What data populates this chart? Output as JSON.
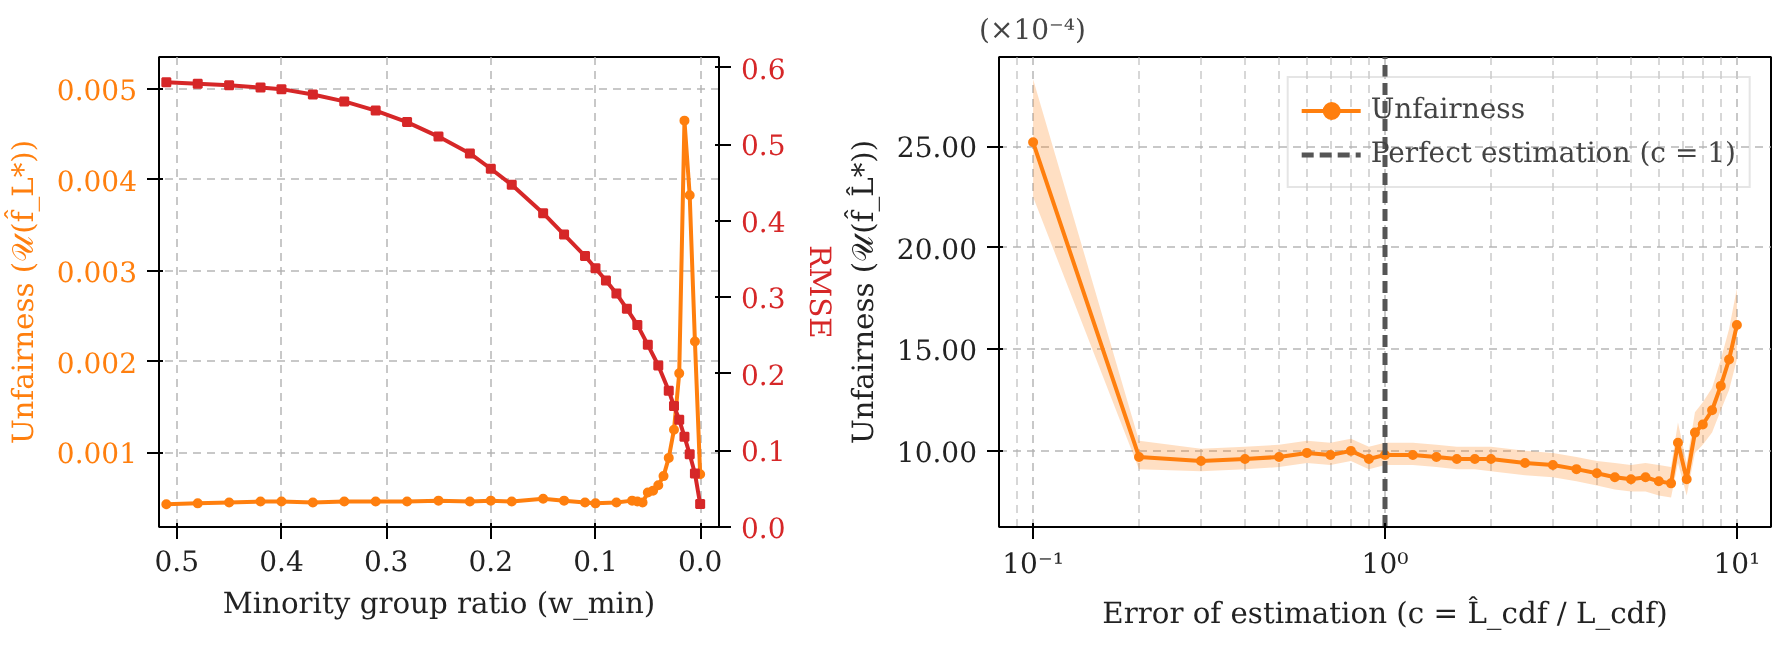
{
  "chart_data": [
    {
      "type": "line",
      "xlabel": "Minority group ratio (w_min)",
      "ylabel": "Unfairness (𝒰(f̂_L*))",
      "y2label": "RMSE",
      "xlim": [
        0.517,
        -0.018
      ],
      "xticks": [
        0.5,
        0.4,
        0.3,
        0.2,
        0.1,
        {
          "value": 0,
          "label": "0.0"
        }
      ],
      "ylim": [
        0.00018,
        0.00535
      ],
      "yticks": [
        0.001,
        0.002,
        0.003,
        0.004,
        0.005
      ],
      "y2lim": [
        0,
        0.614
      ],
      "y2ticks": [
        {
          "value": 0,
          "label": "0.0"
        },
        0.1,
        0.2,
        0.3,
        0.4,
        0.5,
        0.6
      ],
      "grid": true,
      "legend": false,
      "series": [
        {
          "color": "#ff7f0e",
          "marker": "circle",
          "x": [
            0.51,
            0.48,
            0.45,
            0.42,
            0.4,
            0.37,
            0.34,
            0.31,
            0.28,
            0.25,
            0.22,
            0.2,
            0.18,
            0.15,
            0.13,
            0.11,
            0.1,
            0.08,
            0.065,
            0.06,
            0.055,
            0.05,
            0.045,
            0.04,
            0.035,
            0.03,
            0.025,
            0.02,
            0.015,
            0.01,
            0.005,
            0.0
          ],
          "values": [
            0.00043,
            0.00044,
            0.00045,
            0.00046,
            0.00046,
            0.00045,
            0.00046,
            0.00046,
            0.00046,
            0.00047,
            0.00046,
            0.00047,
            0.00046,
            0.00049,
            0.00047,
            0.00045,
            0.00044,
            0.00045,
            0.00047,
            0.00046,
            0.00045,
            0.00056,
            0.00058,
            0.00064,
            0.00074,
            0.00094,
            0.00125,
            0.00187,
            0.00465,
            0.00383,
            0.00222,
            0.00076
          ]
        },
        {
          "color": "#d62728",
          "marker": "square",
          "axis": "y2",
          "x": [
            0.51,
            0.48,
            0.45,
            0.42,
            0.4,
            0.37,
            0.34,
            0.31,
            0.28,
            0.25,
            0.22,
            0.2,
            0.18,
            0.15,
            0.13,
            0.11,
            0.1,
            0.09,
            0.08,
            0.07,
            0.06,
            0.05,
            0.04,
            0.03,
            0.025,
            0.02,
            0.015,
            0.01,
            0.005,
            0.0
          ],
          "values": [
            0.581,
            0.579,
            0.577,
            0.574,
            0.572,
            0.565,
            0.556,
            0.544,
            0.529,
            0.51,
            0.488,
            0.468,
            0.447,
            0.41,
            0.382,
            0.354,
            0.338,
            0.322,
            0.305,
            0.285,
            0.264,
            0.238,
            0.211,
            0.178,
            0.158,
            0.14,
            0.118,
            0.095,
            0.07,
            0.03
          ]
        }
      ]
    },
    {
      "type": "line",
      "xlabel": "Error of estimation (c = L̂_cdf / L_cdf)",
      "ylabel": "Unfairness (𝒰(f̂_L̂*))",
      "annotations": [
        "(×10⁻⁴)"
      ],
      "log": "x",
      "xlim": [
        0.08,
        12.5
      ],
      "xticks": [
        {
          "value": 0.1,
          "label": "10⁻¹"
        },
        {
          "value": 1,
          "label": "10⁰"
        },
        {
          "value": 10,
          "label": "10¹"
        }
      ],
      "ylim": [
        6.25,
        29.4
      ],
      "yticks": [
        {
          "value": 10,
          "label": "10.00"
        },
        {
          "value": 15,
          "label": "15.00"
        },
        {
          "value": 20,
          "label": "20.00"
        },
        {
          "value": 25,
          "label": "25.00"
        }
      ],
      "grid": true,
      "legend": "top right",
      "ref_lines": [
        {
          "axis": "x",
          "value": 1,
          "label": "Perfect estimation (c = 1)",
          "color": "#555555",
          "line_style": "dashed"
        }
      ],
      "series": [
        {
          "name": "Unfairness",
          "color": "#ff7f0e",
          "marker": "circle",
          "x": [
            0.1,
            0.2,
            0.3,
            0.4,
            0.5,
            0.6,
            0.7,
            0.8,
            0.9,
            1.0,
            1.2,
            1.4,
            1.6,
            1.8,
            2.0,
            2.5,
            3.0,
            3.5,
            4.0,
            4.5,
            5.0,
            5.5,
            6.0,
            6.5,
            6.8,
            7.2,
            7.6,
            8.0,
            8.5,
            9.0,
            9.5,
            10.0
          ],
          "values": [
            25.2,
            9.7,
            9.5,
            9.6,
            9.7,
            9.9,
            9.8,
            10.0,
            9.6,
            9.8,
            9.8,
            9.7,
            9.6,
            9.6,
            9.6,
            9.4,
            9.3,
            9.1,
            8.9,
            8.7,
            8.6,
            8.7,
            8.5,
            8.4,
            10.4,
            8.6,
            10.9,
            11.3,
            12.0,
            13.2,
            14.5,
            16.2
          ],
          "lower": [
            22.5,
            9.1,
            9.0,
            9.1,
            9.2,
            9.4,
            9.3,
            9.5,
            9.1,
            9.3,
            9.3,
            9.2,
            9.1,
            9.1,
            9.0,
            8.8,
            8.7,
            8.5,
            8.3,
            8.1,
            8.0,
            8.0,
            7.8,
            7.7,
            9.4,
            7.8,
            9.9,
            10.3,
            10.9,
            12.0,
            13.0,
            14.5
          ],
          "upper": [
            28.3,
            10.5,
            10.1,
            10.2,
            10.3,
            10.5,
            10.4,
            10.6,
            10.2,
            10.4,
            10.4,
            10.3,
            10.2,
            10.2,
            10.2,
            10.0,
            9.9,
            9.7,
            9.5,
            9.4,
            9.3,
            9.4,
            9.3,
            9.2,
            11.4,
            9.4,
            11.9,
            12.4,
            13.1,
            14.5,
            16.0,
            18.0
          ]
        }
      ]
    }
  ]
}
